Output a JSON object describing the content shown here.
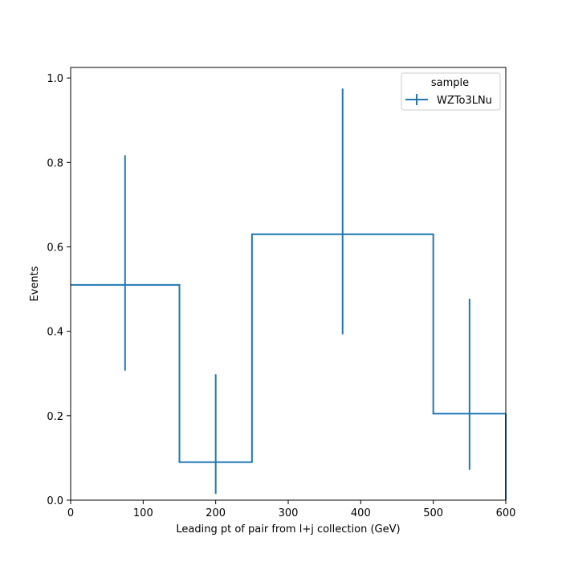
{
  "chart_data": {
    "type": "line",
    "style": "step-histogram-with-errorbars",
    "xlabel": "Leading pt of pair from l+j collection (GeV)",
    "ylabel": "Events",
    "xlim": [
      0,
      600
    ],
    "ylim": [
      0,
      1.025
    ],
    "x_ticks": [
      0,
      100,
      200,
      300,
      400,
      500,
      600
    ],
    "y_ticks": [
      0.0,
      0.2,
      0.4,
      0.6,
      0.8,
      1.0
    ],
    "x_tick_labels": [
      "0",
      "100",
      "200",
      "300",
      "400",
      "500",
      "600"
    ],
    "y_tick_labels": [
      "0.0",
      "0.2",
      "0.4",
      "0.6",
      "0.8",
      "1.0"
    ],
    "grid": false,
    "legend": {
      "title": "sample",
      "placement": "top-right"
    },
    "series": [
      {
        "name": "WZTo3LNu",
        "color": "#1f77b4",
        "bins": [
          {
            "low": 0,
            "high": 150,
            "value": 0.51,
            "err_low": 0.307,
            "err_high": 0.817
          },
          {
            "low": 150,
            "high": 250,
            "value": 0.09,
            "err_low": 0.015,
            "err_high": 0.298
          },
          {
            "low": 250,
            "high": 500,
            "value": 0.63,
            "err_low": 0.393,
            "err_high": 0.975
          },
          {
            "low": 500,
            "high": 600,
            "value": 0.205,
            "err_low": 0.072,
            "err_high": 0.477
          }
        ],
        "overflow_error": {
          "x": 600,
          "low": 0.0,
          "high": 0.205
        }
      }
    ]
  }
}
